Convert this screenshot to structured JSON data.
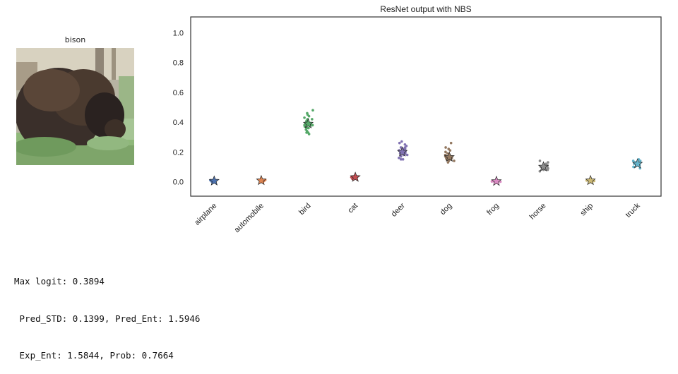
{
  "image_panel": {
    "title": "bison",
    "image_subject": "bison"
  },
  "chart_data": {
    "type": "scatter",
    "title": "ResNet output with NBS",
    "xlabel": "",
    "ylabel": "",
    "ylim": [
      -0.1,
      1.1
    ],
    "yticks": [
      "0.0",
      "0.2",
      "0.4",
      "0.6",
      "0.8",
      "1.0"
    ],
    "categories": [
      "airplane",
      "automobile",
      "bird",
      "cat",
      "deer",
      "dog",
      "frog",
      "horse",
      "ship",
      "truck"
    ],
    "colors": [
      "#4c72b0",
      "#dd8452",
      "#55a868",
      "#c44e52",
      "#8172b2",
      "#937860",
      "#da8bc3",
      "#8c8c8c",
      "#ccb974",
      "#64b5cd"
    ],
    "grid": false,
    "legend": "none",
    "predictions": [
      0.005,
      0.008,
      0.389,
      0.03,
      0.2,
      0.165,
      0.003,
      0.1,
      0.008,
      0.12
    ],
    "samples": [
      [
        0.0,
        0.005,
        0.01,
        0.002,
        0.008
      ],
      [
        0.003,
        0.01,
        0.006,
        0.012,
        0.008
      ],
      [
        0.48,
        0.46,
        0.45,
        0.44,
        0.43,
        0.42,
        0.42,
        0.41,
        0.4,
        0.4,
        0.39,
        0.39,
        0.39,
        0.38,
        0.38,
        0.38,
        0.37,
        0.37,
        0.36,
        0.36,
        0.35,
        0.34,
        0.33,
        0.33,
        0.32
      ],
      [
        0.02,
        0.025,
        0.03,
        0.035,
        0.04,
        0.03,
        0.028
      ],
      [
        0.27,
        0.26,
        0.25,
        0.24,
        0.23,
        0.23,
        0.22,
        0.22,
        0.21,
        0.21,
        0.2,
        0.2,
        0.2,
        0.19,
        0.19,
        0.18,
        0.18,
        0.17,
        0.16,
        0.15,
        0.15
      ],
      [
        0.26,
        0.23,
        0.22,
        0.21,
        0.2,
        0.19,
        0.18,
        0.18,
        0.17,
        0.17,
        0.16,
        0.16,
        0.15,
        0.15,
        0.14,
        0.14,
        0.13
      ],
      [
        0.0,
        0.002,
        0.005,
        0.003
      ],
      [
        0.14,
        0.13,
        0.12,
        0.11,
        0.11,
        0.1,
        0.1,
        0.09,
        0.09,
        0.08,
        0.08,
        0.07
      ],
      [
        0.0,
        0.005,
        0.01,
        0.012,
        0.008
      ],
      [
        0.15,
        0.14,
        0.14,
        0.13,
        0.13,
        0.12,
        0.12,
        0.12,
        0.11,
        0.11,
        0.1,
        0.1,
        0.09
      ]
    ]
  },
  "stats": {
    "line1": "Max logit: 0.3894",
    "line2": " Pred_STD: 0.1399, Pred_Ent: 1.5946",
    "line3": " Exp_Ent: 1.5844, Prob: 0.7664"
  }
}
